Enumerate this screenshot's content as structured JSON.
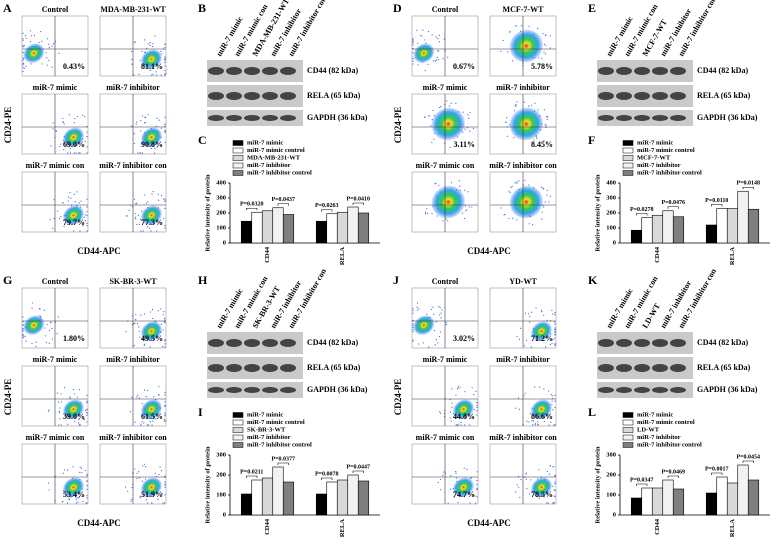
{
  "flow": [
    {
      "letter": "A",
      "ylabel": "CD24-PE",
      "xlabel": "CD44-APC",
      "plots": [
        {
          "title": "Control",
          "percent": "0.43%"
        },
        {
          "title": "MDA-MB-231-WT",
          "percent": "81.1%"
        },
        {
          "title": "miR-7 mimic",
          "percent": "69.0%"
        },
        {
          "title": "miR-7 inhibitor",
          "percent": "90.8%"
        },
        {
          "title": "miR-7 mimic con",
          "percent": "79.7%"
        },
        {
          "title": "miR-7 inhibitor con",
          "percent": "77.3%"
        }
      ]
    },
    {
      "letter": "D",
      "ylabel": "CD24-PE",
      "xlabel": "CD44-APC",
      "plots": [
        {
          "title": "Control",
          "percent": "0.67%"
        },
        {
          "title": "MCF-7-WT",
          "percent": "5.78%"
        },
        {
          "title": "miR-7 mimic",
          "percent": "3.11%"
        },
        {
          "title": "miR-7 inhibitor",
          "percent": "8.45%"
        },
        {
          "title": "miR-7 mimic con"
        },
        {
          "title": "miR-7 inhibitor con"
        }
      ]
    },
    {
      "letter": "G",
      "ylabel": "CD24-PE",
      "xlabel": "CD44-APC",
      "plots": [
        {
          "title": "Control",
          "percent": "1.80%"
        },
        {
          "title": "SK-BR-3-WT",
          "percent": "49.5%"
        },
        {
          "title": "miR-7 mimic",
          "percent": "39.0%"
        },
        {
          "title": "miR-7 inhibitor",
          "percent": "61.5%"
        },
        {
          "title": "miR-7 mimic con",
          "percent": "53.4%"
        },
        {
          "title": "miR-7 inhibitor con",
          "percent": "51.9%"
        }
      ]
    },
    {
      "letter": "J",
      "ylabel": "CD24-PE",
      "xlabel": "CD44-APC",
      "plots": [
        {
          "title": "Control",
          "percent": "3.02%"
        },
        {
          "title": "YD-WT",
          "percent": "71.2%"
        },
        {
          "title": "miR-7 mimic",
          "percent": "44.8%"
        },
        {
          "title": "miR-7 inhibitor",
          "percent": "86.6%"
        },
        {
          "title": "miR-7 mimic con",
          "percent": "74.7%"
        },
        {
          "title": "miR-7 inhibitor con",
          "percent": "78.5%"
        }
      ]
    }
  ],
  "blots": [
    {
      "letter": "B",
      "lanes": [
        "miR-7 mimic",
        "miR-7 mimic con",
        "MDA-MB-231-WT",
        "miR-7 inhibitor",
        "miR-7 inhibitor con"
      ],
      "bands": [
        "CD44 (82 kDa)",
        "RELA (65 kDa)",
        "GAPDH (36 kDa)"
      ]
    },
    {
      "letter": "E",
      "lanes": [
        "miR-7 mimic",
        "miR-7 mimic con",
        "MCF-7-WT",
        "miR-7 inhibitor",
        "miR-7 inhibitor con"
      ],
      "bands": [
        "CD44 (82 kDa)",
        "RELA (65 kDa)",
        "GAPDH (36 kDa)"
      ]
    },
    {
      "letter": "H",
      "lanes": [
        "miR-7 mimic",
        "miR-7 mimic con",
        "SK-BR-3-WT",
        "miR-7 inhibitor",
        "miR-7 inhibitor con"
      ],
      "bands": [
        "CD44 (82 kDa)",
        "RELA (65 kDa)",
        "GAPDH (36 kDa)"
      ]
    },
    {
      "letter": "K",
      "lanes": [
        "miR-7 mimic",
        "miR-7 mimic con",
        "LD-WT",
        "miR-7 inhibitor",
        "miR-7 inhibitor con"
      ],
      "bands": [
        "CD44 (82 kDa)",
        "RELA (65 kDa)",
        "GAPDH (36 kDa)"
      ]
    }
  ],
  "chart_data": [
    {
      "type": "bar",
      "letter": "C",
      "ylabel": "Relative intensity of protein",
      "categories": [
        "CD44",
        "RELA"
      ],
      "ylim": [
        0,
        400
      ],
      "yticks": [
        0,
        100,
        200,
        300,
        400
      ],
      "series": [
        {
          "name": "miR-7 mimic",
          "color": "#000000",
          "values": [
            145,
            145
          ]
        },
        {
          "name": "miR-7 mimic control",
          "color": "#ffffff",
          "values": [
            205,
            195
          ]
        },
        {
          "name": "MDA-MB-231-WT",
          "color": "#d9d9d9",
          "values": [
            215,
            205
          ]
        },
        {
          "name": "miR-7 inhibitor",
          "color": "#f2f2f2",
          "values": [
            235,
            240
          ]
        },
        {
          "name": "miR-7 inhibitor control",
          "color": "#7f7f7f",
          "values": [
            190,
            200
          ]
        }
      ],
      "annotations": [
        "P=0.0320",
        "P=0.0437",
        "P=0.0263",
        "P=0.0410"
      ]
    },
    {
      "type": "bar",
      "letter": "F",
      "ylabel": "Relative intensity of protein",
      "categories": [
        "CD44",
        "RELA"
      ],
      "ylim": [
        0,
        400
      ],
      "yticks": [
        0,
        100,
        200,
        300,
        400
      ],
      "series": [
        {
          "name": "miR-7 mimic",
          "color": "#000000",
          "values": [
            85,
            120
          ]
        },
        {
          "name": "miR-7 mimic control",
          "color": "#ffffff",
          "values": [
            170,
            230
          ]
        },
        {
          "name": "MCF-7-WT",
          "color": "#d9d9d9",
          "values": [
            185,
            230
          ]
        },
        {
          "name": "miR-7 inhibitor",
          "color": "#f2f2f2",
          "values": [
            215,
            345
          ]
        },
        {
          "name": "miR-7 inhibitor control",
          "color": "#7f7f7f",
          "values": [
            175,
            225
          ]
        }
      ],
      "annotations": [
        "P=0.0278",
        "P=0.0476",
        "P=0.0110",
        "P=0.0148"
      ]
    },
    {
      "type": "bar",
      "letter": "I",
      "ylabel": "Relative intensity of protein",
      "categories": [
        "CD44",
        "RELA"
      ],
      "ylim": [
        0,
        300
      ],
      "yticks": [
        0,
        100,
        200,
        300
      ],
      "series": [
        {
          "name": "miR-7 mimic",
          "color": "#000000",
          "values": [
            105,
            105
          ]
        },
        {
          "name": "miR-7 mimic control",
          "color": "#ffffff",
          "values": [
            175,
            165
          ]
        },
        {
          "name": "SK-BR-3-WT",
          "color": "#d9d9d9",
          "values": [
            185,
            175
          ]
        },
        {
          "name": "miR-7 inhibitor",
          "color": "#f2f2f2",
          "values": [
            240,
            200
          ]
        },
        {
          "name": "miR-7 inhibitor control",
          "color": "#7f7f7f",
          "values": [
            165,
            170
          ]
        }
      ],
      "annotations": [
        "P=0.0211",
        "P=0.0377",
        "P=0.0078",
        "P=0.0447"
      ]
    },
    {
      "type": "bar",
      "letter": "L",
      "ylabel": "Relative intensity of protein",
      "categories": [
        "CD44",
        "RELA"
      ],
      "ylim": [
        0,
        300
      ],
      "yticks": [
        0,
        100,
        200,
        300
      ],
      "series": [
        {
          "name": "miR-7 mimic",
          "color": "#000000",
          "values": [
            85,
            110
          ]
        },
        {
          "name": "miR-7 mimic control",
          "color": "#ffffff",
          "values": [
            135,
            190
          ]
        },
        {
          "name": "LD-WT",
          "color": "#d9d9d9",
          "values": [
            135,
            160
          ]
        },
        {
          "name": "miR-7 inhibitor",
          "color": "#f2f2f2",
          "values": [
            175,
            250
          ]
        },
        {
          "name": "miR-7 inhibitor control",
          "color": "#7f7f7f",
          "values": [
            130,
            175
          ]
        }
      ],
      "annotations": [
        "P=0.0347",
        "P=0.0469",
        "P=0.0017",
        "P=0.0454"
      ]
    }
  ]
}
